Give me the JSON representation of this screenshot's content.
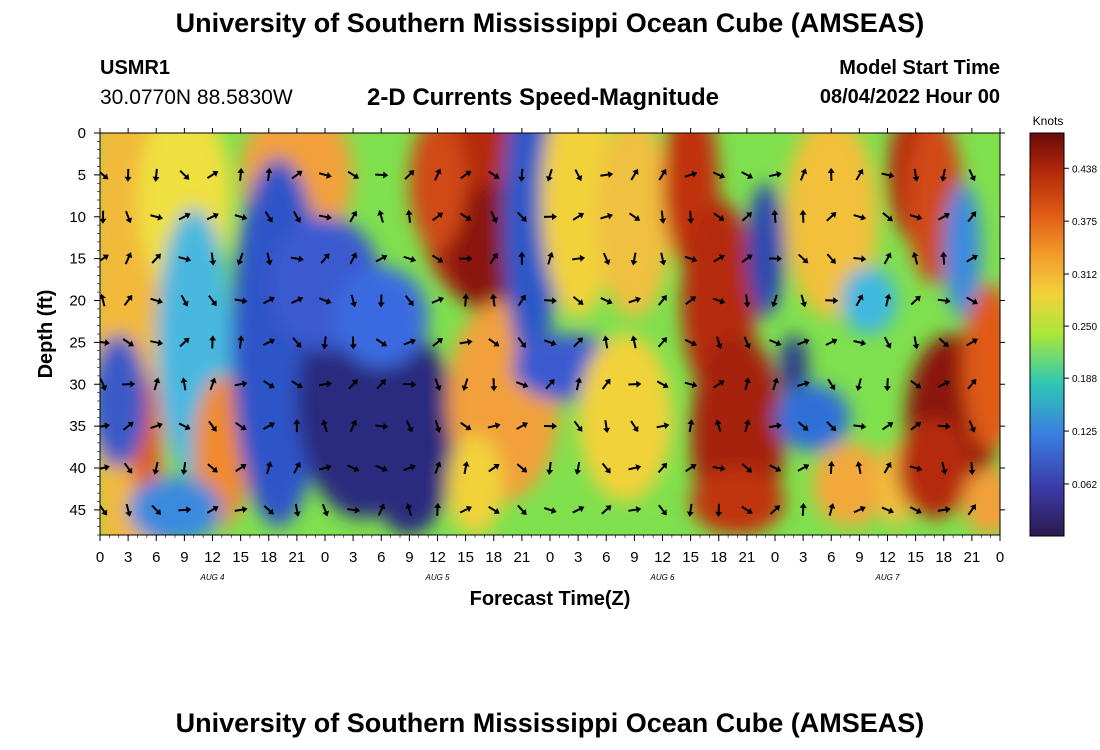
{
  "header": {
    "title": "University of Southern Mississippi Ocean Cube (AMSEAS)",
    "station_id": "USMR1",
    "station_coords": "30.0770N  88.5830W",
    "subtitle": "2-D Currents Speed-Magnitude",
    "model_start_label": "Model Start Time",
    "model_start_value": "08/04/2022 Hour 00"
  },
  "footer": {
    "title": "University of Southern Mississippi Ocean Cube (AMSEAS)"
  },
  "chart_data": {
    "type": "heatmap",
    "title": "2-D Currents Speed-Magnitude",
    "xlabel": "Forecast Time(Z)",
    "ylabel": "Depth (ft)",
    "x_range_hours": [
      0,
      96
    ],
    "y_range_ft": [
      0,
      48
    ],
    "x_ticks": [
      "0",
      "3",
      "6",
      "9",
      "12",
      "15",
      "18",
      "21",
      "0",
      "3",
      "6",
      "9",
      "12",
      "15",
      "18",
      "21",
      "0",
      "3",
      "6",
      "9",
      "12",
      "15",
      "18",
      "21",
      "0",
      "3",
      "6",
      "9",
      "12",
      "15",
      "18",
      "21",
      "0"
    ],
    "day_labels": [
      {
        "label": "AUG 4",
        "hour": 12
      },
      {
        "label": "AUG 5",
        "hour": 36
      },
      {
        "label": "AUG 6",
        "hour": 60
      },
      {
        "label": "AUG 7",
        "hour": 84
      }
    ],
    "y_ticks": [
      "0",
      "5",
      "10",
      "15",
      "20",
      "25",
      "30",
      "35",
      "40",
      "45"
    ],
    "colorbar": {
      "title": "Knots",
      "min": 0.0,
      "max": 0.48,
      "ticks": [
        "0.062",
        "0.125",
        "0.188",
        "0.250",
        "0.312",
        "0.375",
        "0.438"
      ]
    },
    "vector_grid": {
      "hours": [
        0,
        3,
        6,
        9,
        12,
        15,
        18,
        21,
        24,
        27,
        30,
        33,
        36,
        39,
        42,
        45,
        48,
        51,
        54,
        57,
        60,
        63,
        66,
        69,
        72,
        75,
        78,
        81,
        84,
        87,
        90,
        93
      ],
      "depths_ft": [
        5,
        10,
        15,
        20,
        25,
        30,
        35,
        40,
        45
      ]
    }
  }
}
